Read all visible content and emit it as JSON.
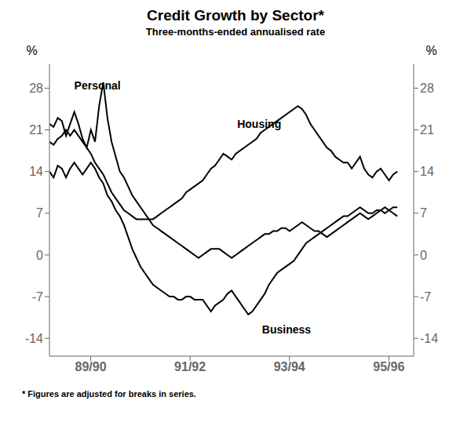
{
  "chart_data": {
    "type": "line",
    "title": "Credit Growth by Sector*",
    "subtitle": "Three-months-ended annualised rate",
    "ylabel": "%",
    "y2label": "%",
    "footnote": "* Figures are adjusted for breaks in series.",
    "grid": false,
    "x": [
      0,
      0.083333,
      0.166667,
      0.25,
      0.333333,
      0.416667,
      0.5,
      0.583333,
      0.666667,
      0.75,
      0.833333,
      0.916667,
      1,
      1.083333,
      1.166667,
      1.25,
      1.333333,
      1.416667,
      1.5,
      1.583333,
      1.666667,
      1.75,
      1.833333,
      1.916667,
      2,
      2.083333,
      2.166667,
      2.25,
      2.333333,
      2.416667,
      2.5,
      2.583333,
      2.666667,
      2.75,
      2.833333,
      2.916667,
      3,
      3.083333,
      3.166667,
      3.25,
      3.333333,
      3.416667,
      3.5,
      3.583333,
      3.666667,
      3.75,
      3.833333,
      3.916667,
      4,
      4.083333,
      4.166667,
      4.25,
      4.333333,
      4.416667,
      4.5,
      4.583333,
      4.666667,
      4.75,
      4.833333,
      4.916667,
      5,
      5.083333,
      5.166667,
      5.25,
      5.333333,
      5.416667,
      5.5,
      5.583333,
      5.666667,
      5.75,
      5.833333,
      5.916667,
      6,
      6.083333,
      6.166667,
      6.25,
      6.333333,
      6.416667,
      6.5,
      6.583333,
      6.666667,
      6.75,
      6.833333,
      6.916667,
      7
    ],
    "xlim": [
      0,
      7.33
    ],
    "xticks": [
      {
        "value": 0.83,
        "label": "89/90"
      },
      {
        "value": 2.83,
        "label": "91/92"
      },
      {
        "value": 4.83,
        "label": "93/94"
      },
      {
        "value": 6.83,
        "label": "95/96"
      }
    ],
    "ylim": [
      -17,
      32
    ],
    "yticks": [
      -14,
      -7,
      0,
      7,
      14,
      21,
      28
    ],
    "y2lim": [
      -17,
      32
    ],
    "y2ticks": [
      -14,
      -7,
      0,
      7,
      14,
      21,
      28
    ],
    "series": [
      {
        "color": "#000000",
        "values": [
          22.0,
          21.5,
          23.0,
          22.5,
          20.0,
          22.0,
          24.0,
          22.0,
          19.5,
          18.0,
          21.0,
          19.0,
          25.0,
          29.0,
          23.0,
          19.0,
          16.5,
          14.0,
          13.0,
          11.5,
          10.0,
          9.0,
          8.0,
          7.0,
          6.0,
          5.0,
          4.5,
          4.0,
          3.5,
          3.0,
          2.5,
          2.0,
          1.5,
          1.0,
          0.5,
          0.0,
          -0.5,
          0.0,
          0.5,
          1.0,
          1.0,
          1.0,
          0.5,
          0.0,
          -0.5,
          0.0,
          0.5,
          1.0,
          1.5,
          2.0,
          2.5,
          3.0,
          3.5,
          3.5,
          4.0,
          4.0,
          4.5,
          4.5,
          4.0,
          4.5,
          5.0,
          5.5,
          5.0,
          4.5,
          4.0,
          4.0,
          3.5,
          3.0,
          3.5,
          4.0,
          4.5,
          5.0,
          5.5,
          6.0,
          6.5,
          7.0,
          6.5,
          6.0,
          6.5,
          7.0,
          7.5,
          8.0,
          7.5,
          7.0,
          6.5
        ]
      },
      {
        "color": "#000000",
        "values": [
          19.0,
          18.5,
          19.5,
          20.0,
          21.0,
          20.0,
          21.0,
          20.0,
          19.0,
          18.0,
          17.0,
          15.5,
          14.5,
          13.5,
          12.0,
          10.5,
          9.5,
          8.5,
          7.5,
          7.0,
          6.5,
          6.0,
          6.0,
          6.0,
          6.0,
          6.0,
          6.5,
          7.0,
          7.5,
          8.0,
          8.5,
          9.0,
          9.5,
          10.5,
          11.0,
          11.5,
          12.0,
          12.5,
          13.5,
          14.5,
          15.0,
          16.0,
          17.0,
          16.5,
          16.0,
          17.0,
          17.5,
          18.0,
          18.5,
          19.0,
          19.5,
          20.5,
          21.0,
          21.5,
          22.0,
          22.5,
          23.0,
          23.5,
          24.0,
          24.5,
          25.0,
          24.5,
          23.5,
          22.0,
          21.0,
          20.0,
          19.0,
          18.0,
          17.5,
          16.5,
          16.0,
          15.5,
          15.5,
          14.5,
          15.5,
          16.5,
          14.5,
          13.5,
          13.0,
          14.0,
          14.5,
          13.5,
          12.5,
          13.5,
          14.0
        ]
      },
      {
        "color": "#000000",
        "values": [
          14.0,
          13.0,
          15.0,
          14.5,
          13.0,
          14.5,
          15.5,
          14.5,
          13.5,
          14.5,
          15.5,
          14.5,
          13.0,
          12.0,
          10.0,
          9.0,
          7.5,
          6.5,
          5.0,
          3.0,
          1.0,
          -0.5,
          -2.0,
          -3.0,
          -4.0,
          -5.0,
          -5.5,
          -6.0,
          -6.5,
          -7.0,
          -7.0,
          -7.5,
          -7.5,
          -7.0,
          -7.0,
          -7.5,
          -7.5,
          -7.5,
          -8.5,
          -9.5,
          -8.5,
          -8.0,
          -7.5,
          -6.5,
          -6.0,
          -7.0,
          -8.0,
          -9.0,
          -10.0,
          -9.5,
          -8.5,
          -7.5,
          -6.5,
          -5.0,
          -4.0,
          -3.0,
          -2.5,
          -2.0,
          -1.5,
          -1.0,
          0.0,
          1.0,
          2.0,
          2.5,
          3.0,
          3.5,
          4.0,
          4.5,
          5.0,
          5.5,
          6.0,
          6.5,
          6.5,
          7.0,
          7.5,
          8.0,
          7.5,
          7.0,
          7.0,
          7.5,
          7.5,
          7.0,
          7.5,
          8.0,
          8.0
        ]
      }
    ],
    "annotations": [
      {
        "text": "Personal",
        "x": 0.42,
        "y": 28.5
      },
      {
        "text": "Housing",
        "x": 3.7,
        "y": 22.0
      },
      {
        "text": "Business",
        "x": 4.2,
        "y": -12.5
      }
    ]
  }
}
